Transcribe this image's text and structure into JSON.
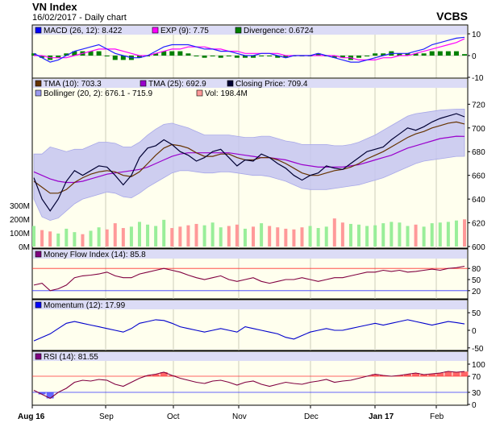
{
  "header": {
    "title": "VN Index",
    "subtitle": "16/02/2017 - Daily chart",
    "brand": "VCBS"
  },
  "chart_data": {
    "type": "line",
    "x_labels": [
      "Aug 16",
      "Sep",
      "Oct",
      "Nov",
      "Dec",
      "Jan 17",
      "Feb"
    ],
    "panels": [
      {
        "id": "macd",
        "legend": [
          {
            "label": "MACD (26, 12): 8.422",
            "color": "#0000ff"
          },
          {
            "label": "EXP (9): 7.75",
            "color": "#ff00ff"
          },
          {
            "label": "Divergence: 0.6724",
            "color": "#008000"
          }
        ],
        "y_ticks": [
          "10",
          "0",
          "-10"
        ],
        "ylim": [
          -10,
          10
        ],
        "series": [
          {
            "name": "MACD (26, 12)",
            "color": "#2020ff",
            "values": [
              1,
              -1,
              -3,
              -2,
              0,
              2,
              3,
              4,
              5,
              3,
              1,
              0,
              -1,
              -1,
              0,
              2,
              4,
              5,
              5,
              5,
              4,
              3,
              3,
              2,
              2,
              1,
              0,
              0,
              1,
              1,
              0,
              -1,
              0,
              0,
              0,
              1,
              0,
              -1,
              -2,
              -3,
              -3,
              -2,
              -1,
              0,
              1,
              1,
              1,
              2,
              3,
              5,
              6,
              7,
              8,
              8.4
            ]
          },
          {
            "name": "EXP (9)",
            "color": "#ff00ff",
            "values": [
              0,
              0,
              -1,
              -1,
              -1,
              0,
              1,
              2,
              3,
              3,
              3,
              2,
              1,
              0,
              0,
              1,
              2,
              3,
              3,
              4,
              4,
              4,
              3,
              3,
              2,
              2,
              1,
              1,
              1,
              1,
              1,
              0,
              0,
              0,
              0,
              0,
              0,
              0,
              -1,
              -1,
              -2,
              -2,
              -2,
              -1,
              -1,
              0,
              0,
              1,
              2,
              3,
              4,
              5,
              6,
              7.75
            ]
          },
          {
            "name": "Divergence",
            "color": "#008000",
            "values": [
              1,
              -1,
              -2,
              -1,
              1,
              2,
              2,
              2,
              2,
              0,
              -2,
              -2,
              -2,
              -1,
              0,
              1,
              2,
              2,
              2,
              1,
              0,
              -1,
              0,
              -1,
              0,
              -1,
              -1,
              -1,
              0,
              0,
              -1,
              -1,
              0,
              0,
              0,
              1,
              0,
              -1,
              -1,
              -2,
              -1,
              0,
              1,
              1,
              2,
              1,
              1,
              1,
              1,
              2,
              2,
              2,
              2,
              0.67
            ]
          }
        ]
      },
      {
        "id": "price",
        "legend": [
          {
            "label": "TMA (10): 703.3",
            "color": "#663300"
          },
          {
            "label": "TMA (25): 692.9",
            "color": "#9900cc"
          },
          {
            "label": "Closing Price: 709.4",
            "color": "#000033"
          },
          {
            "label": "Bollinger (20, 2): 676.1 - 715.9",
            "color": "#9999ee"
          },
          {
            "label": "Vol: 198.4M",
            "color": "#ff9999"
          }
        ],
        "y_ticks": [
          "720",
          "700",
          "680",
          "660",
          "640",
          "620",
          "600"
        ],
        "ylim": [
          600,
          725
        ],
        "vol_ticks": [
          "300M",
          "200M",
          "100M",
          "0M"
        ],
        "vol_max": 300,
        "close": [
          658,
          640,
          630,
          640,
          655,
          664,
          660,
          664,
          668,
          667,
          660,
          652,
          660,
          675,
          683,
          685,
          690,
          686,
          680,
          677,
          672,
          675,
          680,
          682,
          675,
          668,
          673,
          672,
          678,
          675,
          670,
          666,
          660,
          656,
          660,
          662,
          668,
          666,
          665,
          670,
          675,
          680,
          682,
          684,
          690,
          695,
          700,
          698,
          701,
          705,
          708,
          710,
          712,
          709.4
        ],
        "tma10": [
          655,
          650,
          645,
          645,
          648,
          654,
          658,
          661,
          663,
          664,
          663,
          660,
          659,
          663,
          670,
          677,
          683,
          686,
          685,
          683,
          679,
          676,
          676,
          678,
          678,
          675,
          673,
          673,
          675,
          675,
          673,
          670,
          666,
          662,
          660,
          660,
          662,
          664,
          665,
          667,
          670,
          674,
          677,
          680,
          684,
          688,
          692,
          695,
          697,
          700,
          702,
          704,
          705,
          703.3
        ],
        "tma25": [
          663,
          660,
          657,
          655,
          654,
          654,
          655,
          657,
          659,
          661,
          662,
          663,
          664,
          665,
          667,
          670,
          673,
          676,
          678,
          679,
          679,
          679,
          679,
          679,
          679,
          678,
          677,
          676,
          675,
          675,
          674,
          673,
          671,
          669,
          668,
          667,
          667,
          667,
          667,
          668,
          669,
          671,
          673,
          675,
          677,
          680,
          683,
          685,
          687,
          689,
          691,
          692,
          693,
          692.9
        ],
        "boll_upper": [
          678,
          678,
          684,
          682,
          680,
          682,
          682,
          685,
          688,
          688,
          687,
          684,
          684,
          688,
          694,
          699,
          703,
          704,
          702,
          700,
          697,
          694,
          694,
          694,
          694,
          693,
          692,
          692,
          693,
          693,
          691,
          689,
          688,
          686,
          686,
          686,
          686,
          685,
          685,
          686,
          688,
          691,
          694,
          698,
          702,
          706,
          710,
          712,
          713,
          714,
          715,
          715.5,
          715.8,
          715.9
        ],
        "boll_lower": [
          640,
          625,
          622,
          624,
          630,
          636,
          640,
          642,
          644,
          646,
          645,
          642,
          641,
          645,
          650,
          654,
          658,
          662,
          664,
          664,
          663,
          662,
          662,
          663,
          663,
          662,
          661,
          660,
          660,
          659,
          657,
          655,
          652,
          649,
          648,
          648,
          648,
          649,
          650,
          651,
          652,
          654,
          656,
          658,
          661,
          664,
          667,
          670,
          672,
          673,
          674,
          675,
          676,
          676.1
        ],
        "volume": [
          150,
          120,
          110,
          95,
          130,
          105,
          90,
          115,
          140,
          125,
          170,
          135,
          145,
          180,
          160,
          150,
          195,
          135,
          145,
          155,
          165,
          155,
          175,
          140,
          150,
          160,
          130,
          145,
          170,
          150,
          140,
          130,
          125,
          140,
          150,
          135,
          145,
          205,
          175,
          165,
          160,
          150,
          155,
          170,
          180,
          175,
          150,
          160,
          145,
          170,
          175,
          180,
          190,
          198.4
        ]
      },
      {
        "id": "mfi",
        "legend": [
          {
            "label": "Money Flow Index (14): 85.8",
            "color": "#800080"
          }
        ],
        "y_ticks": [
          "80",
          "50",
          "20"
        ],
        "ylim": [
          0,
          100
        ],
        "levels": [
          80,
          20
        ],
        "series": [
          {
            "name": "Money Flow Index (14)",
            "color": "#800040",
            "values": [
              35,
              40,
              20,
              25,
              35,
              55,
              60,
              62,
              65,
              70,
              60,
              55,
              55,
              65,
              70,
              75,
              80,
              75,
              70,
              62,
              55,
              50,
              55,
              60,
              50,
              45,
              50,
              55,
              45,
              40,
              45,
              50,
              50,
              55,
              50,
              45,
              50,
              55,
              55,
              60,
              65,
              70,
              70,
              75,
              72,
              75,
              70,
              72,
              75,
              78,
              75,
              80,
              82,
              85.8
            ]
          }
        ]
      },
      {
        "id": "momentum",
        "legend": [
          {
            "label": "Momentum (12): 17.99",
            "color": "#0000ff"
          }
        ],
        "y_ticks": [
          "50",
          "0",
          "-50"
        ],
        "ylim": [
          -55,
          55
        ],
        "series": [
          {
            "name": "Momentum (12)",
            "color": "#0000cc",
            "values": [
              -30,
              -20,
              -10,
              5,
              20,
              25,
              20,
              15,
              10,
              5,
              0,
              -5,
              5,
              20,
              25,
              30,
              28,
              20,
              10,
              5,
              0,
              -5,
              0,
              5,
              0,
              -5,
              10,
              5,
              0,
              -5,
              -10,
              -20,
              -25,
              -15,
              -5,
              0,
              5,
              0,
              0,
              5,
              10,
              15,
              20,
              15,
              20,
              25,
              30,
              25,
              20,
              15,
              20,
              25,
              22,
              17.99
            ]
          }
        ]
      },
      {
        "id": "rsi",
        "legend": [
          {
            "label": "RSI (14): 81.55",
            "color": "#800080"
          }
        ],
        "y_ticks": [
          "100",
          "70",
          "30",
          "0"
        ],
        "ylim": [
          0,
          100
        ],
        "levels": [
          70,
          30
        ],
        "series": [
          {
            "name": "RSI (14)",
            "color": "#800040",
            "values": [
              35,
              25,
              15,
              30,
              40,
              55,
              60,
              58,
              62,
              60,
              50,
              45,
              55,
              65,
              72,
              75,
              80,
              72,
              65,
              60,
              55,
              52,
              58,
              60,
              55,
              48,
              55,
              58,
              50,
              45,
              50,
              55,
              52,
              50,
              55,
              58,
              62,
              55,
              58,
              60,
              65,
              70,
              75,
              72,
              70,
              72,
              75,
              78,
              74,
              76,
              78,
              82,
              80,
              81.55
            ]
          }
        ]
      }
    ]
  }
}
